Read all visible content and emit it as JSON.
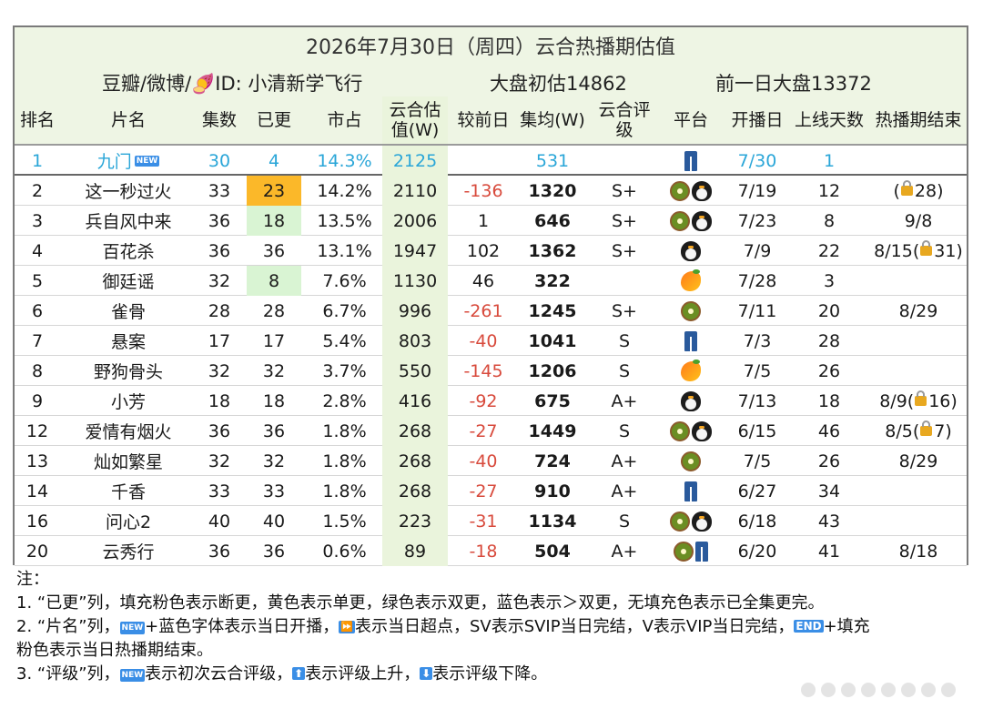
{
  "title": "2026年7月30日（周四）云合热播期估值",
  "source": "豆瓣/微博/🍠ID: 小清新学飞行",
  "market_initial": "大盘初估14862",
  "market_prev": "前一日大盘13372",
  "headers": {
    "rank": "排名",
    "name": "片名",
    "episodes": "集数",
    "updated": "已更",
    "share": "市占",
    "value_line1": "云合估",
    "value_line2": "值(W)",
    "delta": "较前日",
    "avg": "集均(W)",
    "grade_line1": "云合评",
    "grade_line2": "级",
    "platform": "平台",
    "start": "开播日",
    "days": "上线天数",
    "end": "热播期结束"
  },
  "rows": [
    {
      "rank": "1",
      "name": "九门",
      "badge": "NEW",
      "episodes": "30",
      "updated": "4",
      "share": "14.3%",
      "value": "2125",
      "delta": "",
      "avg": "531",
      "grade": "",
      "platforms": [
        "jeans"
      ],
      "start": "7/30",
      "days": "1",
      "end": "",
      "end_lock": ""
    },
    {
      "rank": "2",
      "name": "这一秒过火",
      "episodes": "33",
      "updated": "23",
      "share": "14.2%",
      "value": "2110",
      "delta": "-136",
      "avg": "1320",
      "grade": "S+",
      "platforms": [
        "kiwi",
        "penguin"
      ],
      "start": "7/19",
      "days": "12",
      "end_pre": "(",
      "end_lock": "28)",
      "end": ""
    },
    {
      "rank": "3",
      "name": "兵自风中来",
      "episodes": "36",
      "updated": "18",
      "share": "13.5%",
      "value": "2006",
      "delta": "1",
      "avg": "646",
      "grade": "S+",
      "platforms": [
        "kiwi",
        "penguin"
      ],
      "start": "7/23",
      "days": "8",
      "end": "9/8"
    },
    {
      "rank": "4",
      "name": "百花杀",
      "episodes": "36",
      "updated": "36",
      "share": "13.1%",
      "value": "1947",
      "delta": "102",
      "avg": "1362",
      "grade": "S+",
      "platforms": [
        "penguin"
      ],
      "start": "7/9",
      "days": "22",
      "end_pre": "8/15(",
      "end_lock": "31)",
      "end": ""
    },
    {
      "rank": "5",
      "name": "御廷谣",
      "episodes": "32",
      "updated": "8",
      "share": "7.6%",
      "value": "1130",
      "delta": "46",
      "avg": "322",
      "grade": "",
      "platforms": [
        "mango"
      ],
      "start": "7/28",
      "days": "3",
      "end": ""
    },
    {
      "rank": "6",
      "name": "雀骨",
      "episodes": "28",
      "updated": "28",
      "share": "6.7%",
      "value": "996",
      "delta": "-261",
      "avg": "1245",
      "grade": "S+",
      "platforms": [
        "kiwi"
      ],
      "start": "7/11",
      "days": "20",
      "end": "8/29"
    },
    {
      "rank": "7",
      "name": "悬案",
      "episodes": "17",
      "updated": "17",
      "share": "5.4%",
      "value": "803",
      "delta": "-40",
      "avg": "1041",
      "grade": "S",
      "platforms": [
        "jeans"
      ],
      "start": "7/3",
      "days": "28",
      "end": ""
    },
    {
      "rank": "8",
      "name": "野狗骨头",
      "episodes": "32",
      "updated": "32",
      "share": "3.7%",
      "value": "550",
      "delta": "-145",
      "avg": "1206",
      "grade": "S",
      "platforms": [
        "mango"
      ],
      "start": "7/5",
      "days": "26",
      "end": ""
    },
    {
      "rank": "9",
      "name": "小芳",
      "episodes": "18",
      "updated": "18",
      "share": "2.8%",
      "value": "416",
      "delta": "-92",
      "avg": "675",
      "grade": "A+",
      "platforms": [
        "penguin"
      ],
      "start": "7/13",
      "days": "18",
      "end_pre": "8/9(",
      "end_lock": "16)",
      "end": ""
    },
    {
      "rank": "12",
      "name": "爱情有烟火",
      "episodes": "36",
      "updated": "36",
      "share": "1.8%",
      "value": "268",
      "delta": "-27",
      "avg": "1449",
      "grade": "S",
      "platforms": [
        "kiwi",
        "penguin"
      ],
      "start": "6/15",
      "days": "46",
      "end_pre": "8/5(",
      "end_lock": "7)",
      "end": ""
    },
    {
      "rank": "13",
      "name": "灿如繁星",
      "episodes": "32",
      "updated": "32",
      "share": "1.8%",
      "value": "268",
      "delta": "-40",
      "avg": "724",
      "grade": "A+",
      "platforms": [
        "kiwi"
      ],
      "start": "7/5",
      "days": "26",
      "end": "8/29"
    },
    {
      "rank": "14",
      "name": "千香",
      "episodes": "33",
      "updated": "33",
      "share": "1.8%",
      "value": "268",
      "delta": "-27",
      "avg": "910",
      "grade": "A+",
      "platforms": [
        "jeans"
      ],
      "start": "6/27",
      "days": "34",
      "end": ""
    },
    {
      "rank": "16",
      "name": "问心2",
      "episodes": "40",
      "updated": "40",
      "share": "1.5%",
      "value": "223",
      "delta": "-31",
      "avg": "1134",
      "grade": "S",
      "platforms": [
        "kiwi",
        "penguin"
      ],
      "start": "6/18",
      "days": "43",
      "end": ""
    },
    {
      "rank": "20",
      "name": "云秀行",
      "episodes": "36",
      "updated": "36",
      "share": "0.6%",
      "value": "89",
      "delta": "-18",
      "avg": "504",
      "grade": "A+",
      "platforms": [
        "kiwi",
        "jeans"
      ],
      "start": "6/20",
      "days": "41",
      "end": "8/18"
    }
  ],
  "notes": {
    "heading": "注：",
    "line1": "1. “已更”列，填充粉色表示断更，黄色表示单更，绿色表示双更，蓝色表示＞双更，无填充色表示已全集更完。",
    "line2a": "2. “片名”列，",
    "line2b": "+蓝色字体表示当日开播，",
    "line2c": "表示当日超点，SV表示SVIP当日完结，V表示VIP当日完结，",
    "line2d": "+填充",
    "line2e": "粉色表示当日热播期结束。",
    "line3a": "3. “评级”列，",
    "line3b": "表示初次云合评级，",
    "line3c": "表示评级上升，",
    "line3d": "表示评级下降。",
    "badge_new": "NEW",
    "badge_ff": "⏩",
    "badge_end": "END",
    "badge_up": "⬆",
    "badge_down": "⬇"
  }
}
